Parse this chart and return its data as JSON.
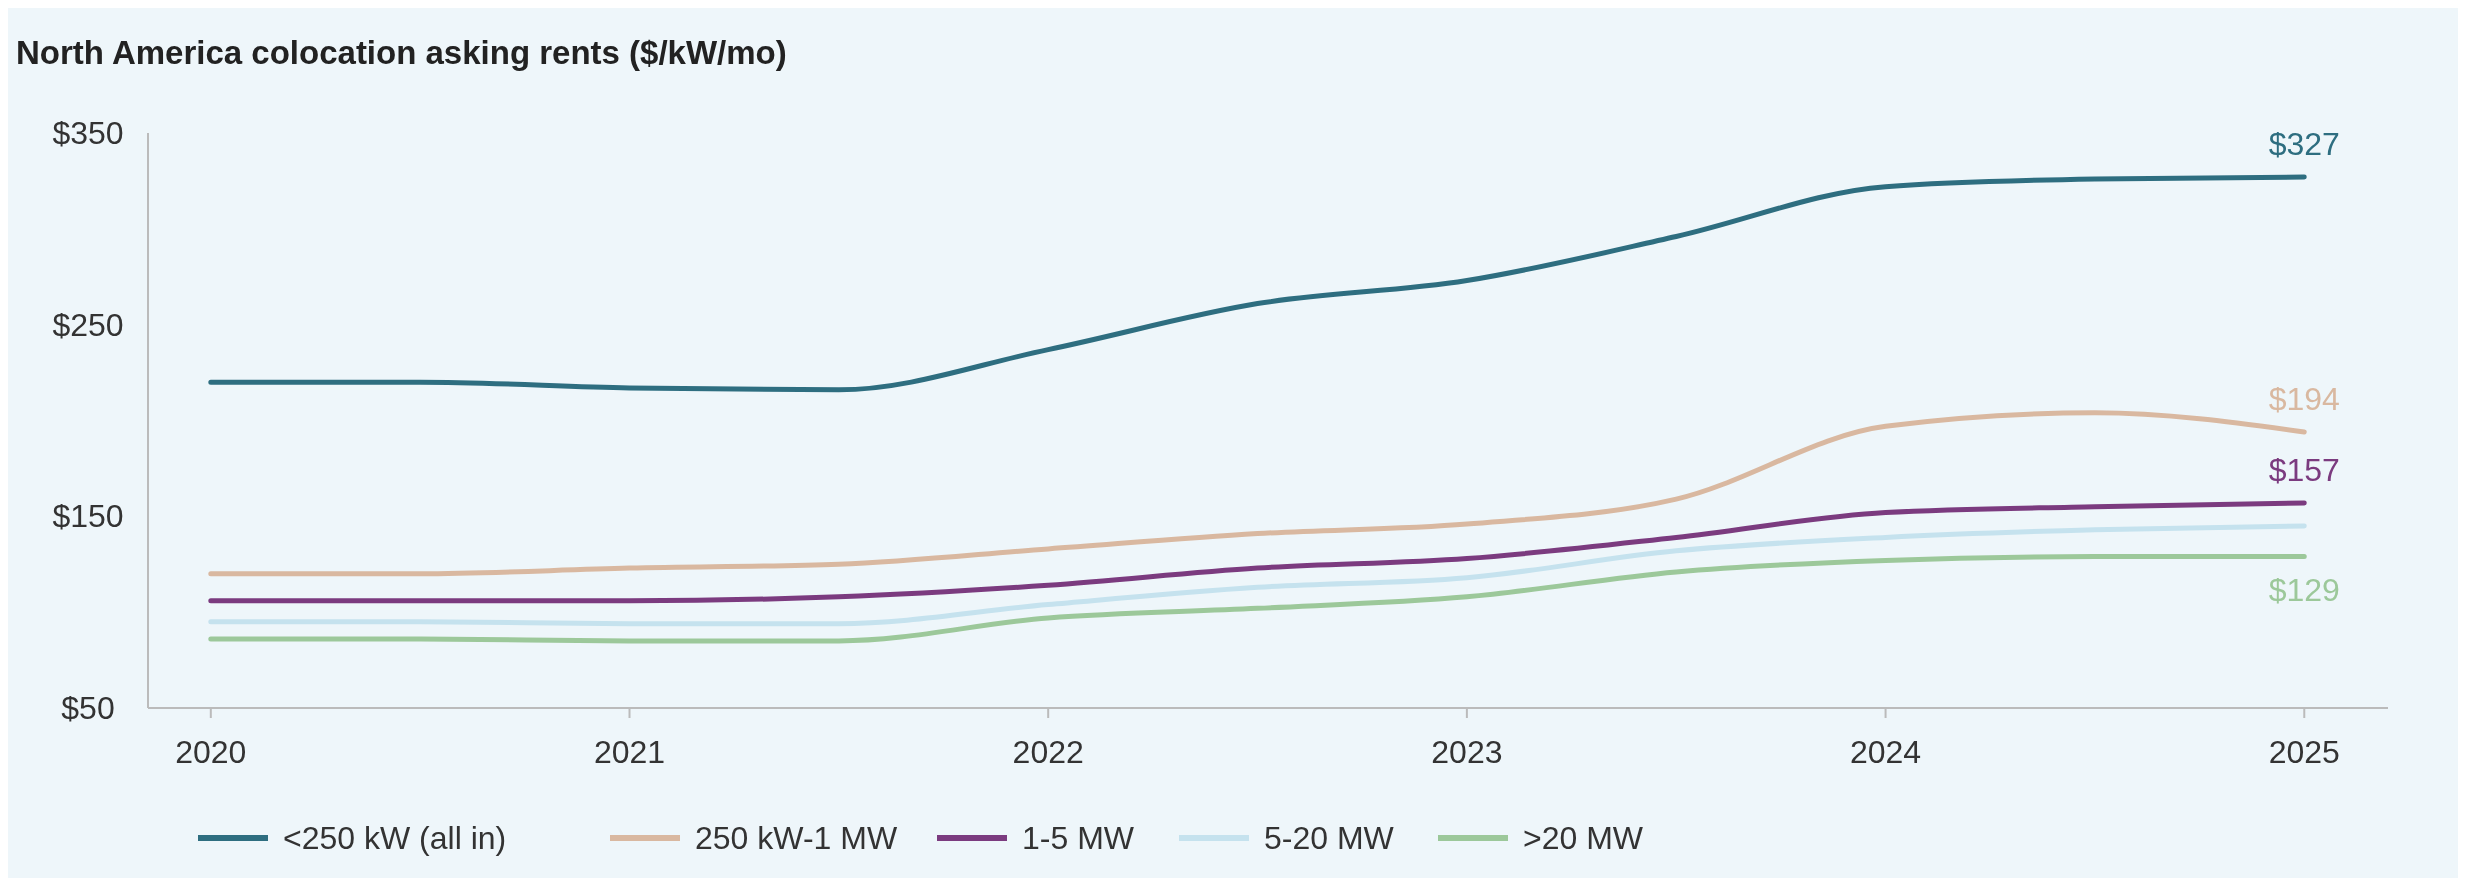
{
  "chart_data": {
    "type": "line",
    "title": "North America colocation asking rents ($/kW/mo)",
    "x": [
      2020,
      2020.5,
      2021,
      2021.5,
      2022,
      2022.5,
      2023,
      2023.5,
      2024,
      2024.5,
      2025
    ],
    "xlim": [
      2019.85,
      2025.2
    ],
    "xticks": [
      2020,
      2021,
      2022,
      2023,
      2024,
      2025
    ],
    "ylim": [
      50,
      350
    ],
    "yticks": [
      {
        "value": 50,
        "label": "$50"
      },
      {
        "value": 150,
        "label": "$150"
      },
      {
        "value": 250,
        "label": "$250"
      },
      {
        "value": 350,
        "label": "$350"
      }
    ],
    "grid": false,
    "legend": "bottom",
    "marker": "none",
    "line_style": "solid",
    "series": [
      {
        "name": "<250 kW (all in)",
        "color": "#2e6e80",
        "values": [
          220,
          220,
          217,
          216,
          237,
          261,
          273,
          296,
          322,
          326,
          327
        ],
        "value_labels": [
          null,
          null,
          null,
          null,
          null,
          null,
          null,
          null,
          null,
          null,
          "$327"
        ]
      },
      {
        "name": "250 kW-1 MW",
        "color": "#d9b8a0",
        "values": [
          120,
          120,
          123,
          125,
          133,
          141,
          146,
          159,
          197,
          204,
          194
        ],
        "value_labels": [
          null,
          null,
          null,
          null,
          null,
          null,
          null,
          null,
          null,
          null,
          "$194"
        ]
      },
      {
        "name": "1-5 MW",
        "color": "#7b3b7f",
        "values": [
          106,
          106,
          106,
          108,
          114,
          123,
          128,
          139,
          152,
          155,
          157
        ],
        "value_labels": [
          null,
          null,
          null,
          null,
          null,
          null,
          null,
          null,
          null,
          null,
          "$157"
        ]
      },
      {
        "name": "5-20 MW",
        "color": "#c5e2ee",
        "values": [
          95,
          95,
          94,
          94,
          104,
          113,
          118,
          132,
          139,
          143,
          145
        ],
        "value_labels": [
          null,
          null,
          null,
          null,
          null,
          null,
          null,
          null,
          null,
          null,
          null
        ]
      },
      {
        "name": ">20 MW",
        "color": "#9cc89a",
        "values": [
          86,
          86,
          85,
          85,
          97,
          102,
          108,
          121,
          127,
          129,
          129
        ],
        "value_labels": [
          null,
          null,
          null,
          null,
          null,
          null,
          null,
          null,
          null,
          null,
          "$129"
        ]
      }
    ]
  }
}
